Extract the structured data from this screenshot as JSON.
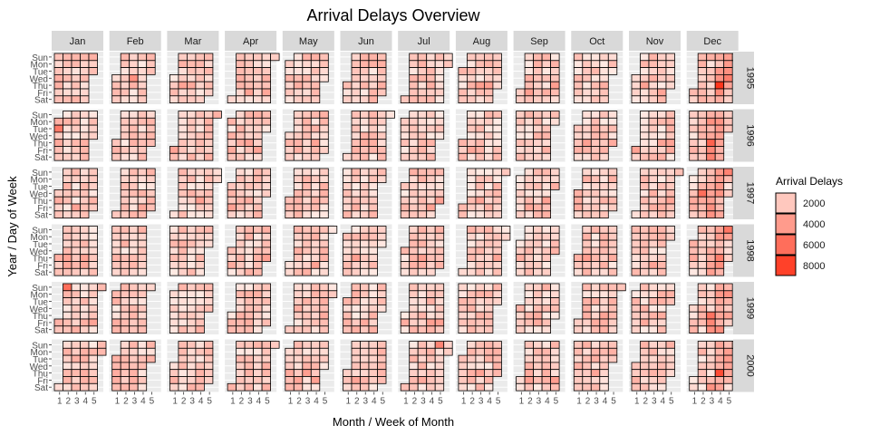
{
  "chart_data": {
    "type": "heatmap",
    "title": "Arrival Delays Overview",
    "xlabel": "Month / Week of Month",
    "ylabel": "Year / Day of Week",
    "months": [
      "Jan",
      "Feb",
      "Mar",
      "Apr",
      "May",
      "Jun",
      "Jul",
      "Aug",
      "Sep",
      "Oct",
      "Nov",
      "Dec"
    ],
    "years": [
      "1995",
      "1996",
      "1997",
      "1998",
      "1999",
      "2000"
    ],
    "days": [
      "Sun",
      "Mon",
      "Tue",
      "Wed",
      "Thu",
      "Fri",
      "Sat"
    ],
    "week_ticks": [
      "1",
      "2",
      "3",
      "4",
      "5"
    ],
    "legend": {
      "title": "Arrival Delays",
      "breaks": [
        2000,
        4000,
        6000,
        8000
      ],
      "labels": [
        "2000",
        "4000",
        "6000",
        "8000"
      ]
    },
    "value_range": [
      0,
      9000
    ],
    "color_low": "#FFF5F0",
    "color_high": "#FF2A10",
    "panel_background": "#EBEBEB",
    "strip_background": "#D9D9D9",
    "notable_values": [
      {
        "year": "1995",
        "month": "Dec",
        "week": 4,
        "day": "Thu",
        "value": 8500
      },
      {
        "year": "1995",
        "month": "Feb",
        "week": 3,
        "day": "Wed",
        "value": 4500
      },
      {
        "year": "1996",
        "month": "Jan",
        "week": 1,
        "day": "Tue",
        "value": 5500
      },
      {
        "year": "1996",
        "month": "Dec",
        "week": 3,
        "day": "Thu",
        "value": 6500
      },
      {
        "year": "1997",
        "month": "Dec",
        "week": 2,
        "day": "Wed",
        "value": 6000
      },
      {
        "year": "1999",
        "month": "Jan",
        "week": 2,
        "day": "Sun",
        "value": 6000
      },
      {
        "year": "2000",
        "month": "Dec",
        "week": 4,
        "day": "Thu",
        "value": 7500
      },
      {
        "year": "2000",
        "month": "Jul",
        "week": 5,
        "day": "Sun",
        "value": 5000
      }
    ],
    "grid": true,
    "legend_position": "right"
  }
}
